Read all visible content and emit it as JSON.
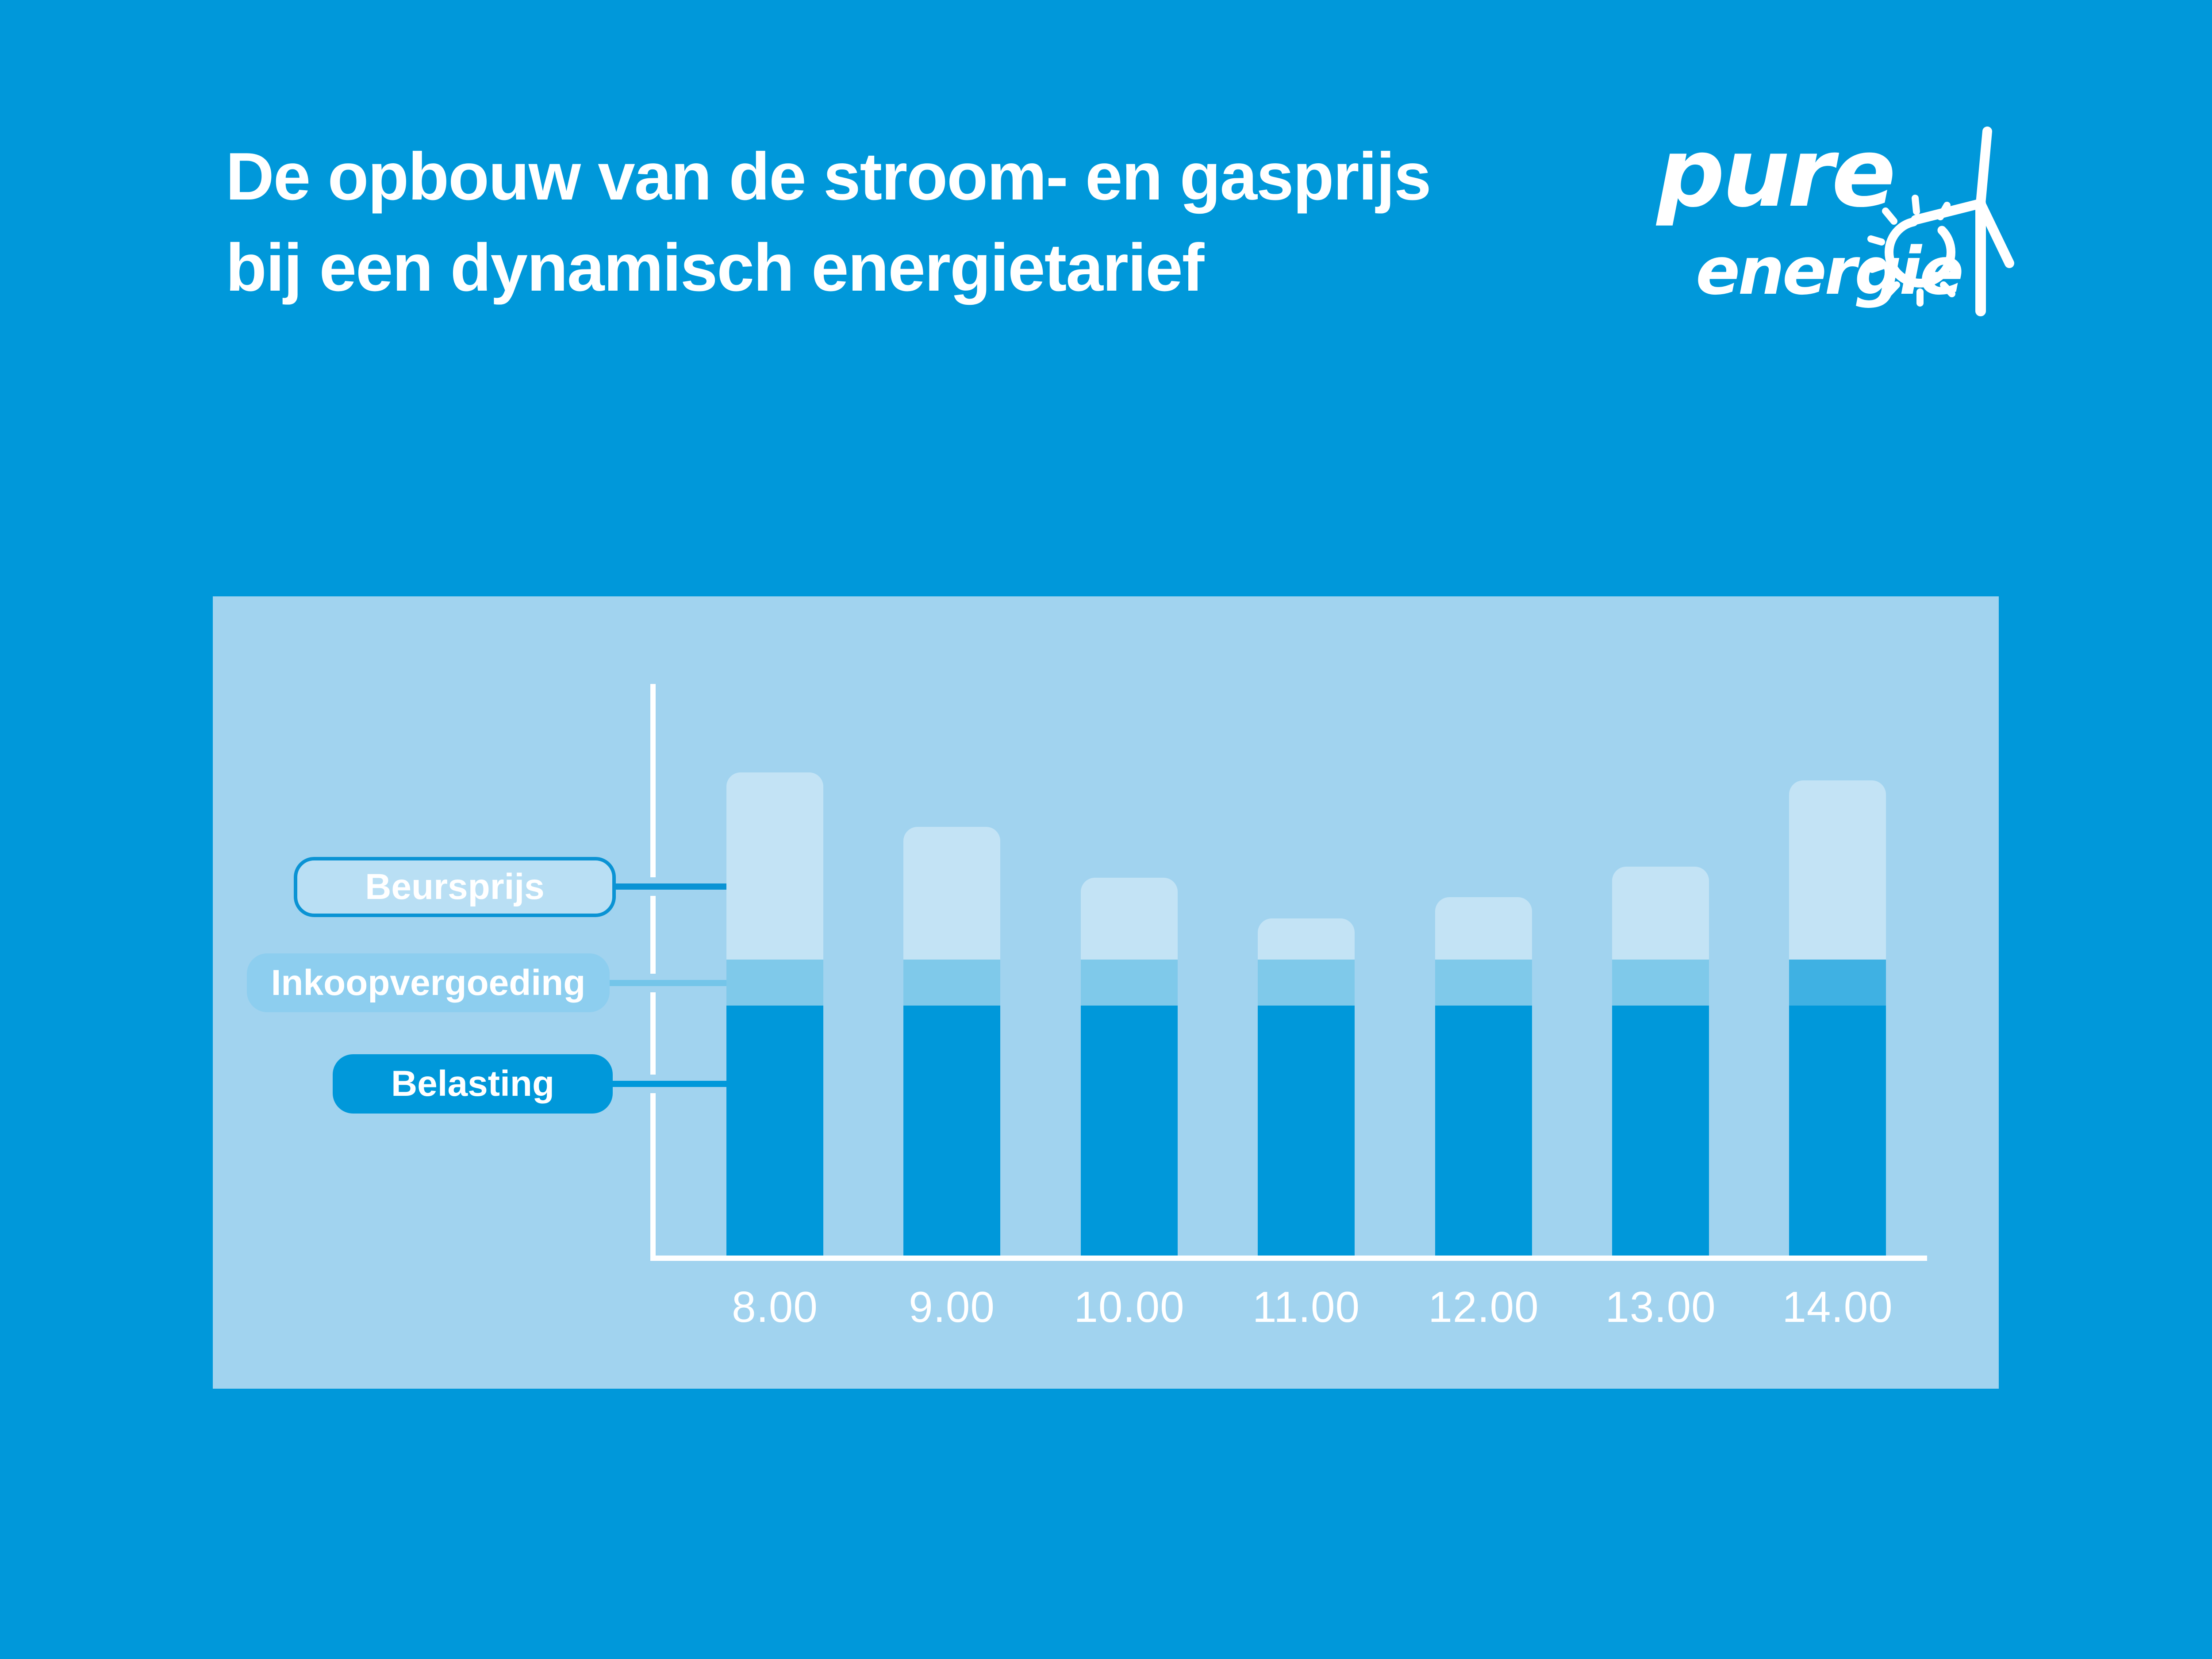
{
  "header": {
    "title_line1": "De opbouw van de stroom- en gasprijs",
    "title_line2": "bij een dynamisch energietarief",
    "text_color": "#FFFFFF"
  },
  "logo": {
    "word_top": "pure",
    "word_bottom": "energie",
    "icon": "sun-and-wind-turbine",
    "color": "#FFFFFF"
  },
  "page": {
    "background": "#0098DA"
  },
  "panel": {
    "background": "#A1D3EF"
  },
  "legend": {
    "items": [
      {
        "id": "beursprijs",
        "label": "Beursprijs",
        "fill": "#B9DFF4",
        "border": "#0A93D4",
        "connector_color": "#0A93D4",
        "text_color": "#FFFFFF"
      },
      {
        "id": "inkoopvergoeding",
        "label": "Inkoopvergoeding",
        "fill": "#8DCEEF",
        "border": null,
        "connector_color": "#74C5E9",
        "text_color": "#FFFFFF"
      },
      {
        "id": "belasting",
        "label": "Belasting",
        "fill": "#0098DA",
        "border": null,
        "connector_color": "#0098DA",
        "text_color": "#FFFFFF"
      }
    ],
    "callout_target": "8.00"
  },
  "chart_data": {
    "type": "bar",
    "stacked": true,
    "title": "",
    "xlabel": "",
    "ylabel": "",
    "categories": [
      "8.00",
      "9.00",
      "10.00",
      "11.00",
      "12.00",
      "13.00",
      "14.00"
    ],
    "series": [
      {
        "name": "Belasting",
        "color": "#0098DA",
        "values": [
          43.7,
          43.7,
          43.7,
          43.7,
          43.7,
          43.7,
          43.7
        ]
      },
      {
        "name": "Inkoopvergoeding",
        "color": "#7FC9EA",
        "values": [
          8.1,
          8.1,
          8.1,
          8.1,
          8.1,
          8.1,
          8.1
        ]
      },
      {
        "name": "Beursprijs",
        "color": "#C3E3F5",
        "values": [
          32.7,
          23.2,
          14.3,
          7.2,
          10.9,
          16.2,
          31.3
        ]
      }
    ],
    "highlight": {
      "category": "14.00",
      "series": "Inkoopvergoeding",
      "color": "#3FB1E3"
    },
    "unit": "relative height, % of y-axis (no numeric scale shown in figure)",
    "ylim": [
      0,
      100
    ],
    "y_ticks": [],
    "grid": false,
    "axis_color": "#FFFFFF",
    "tick_label_color": "#FFFFFF",
    "legend_position": "left callout labels pointing at first bar"
  }
}
